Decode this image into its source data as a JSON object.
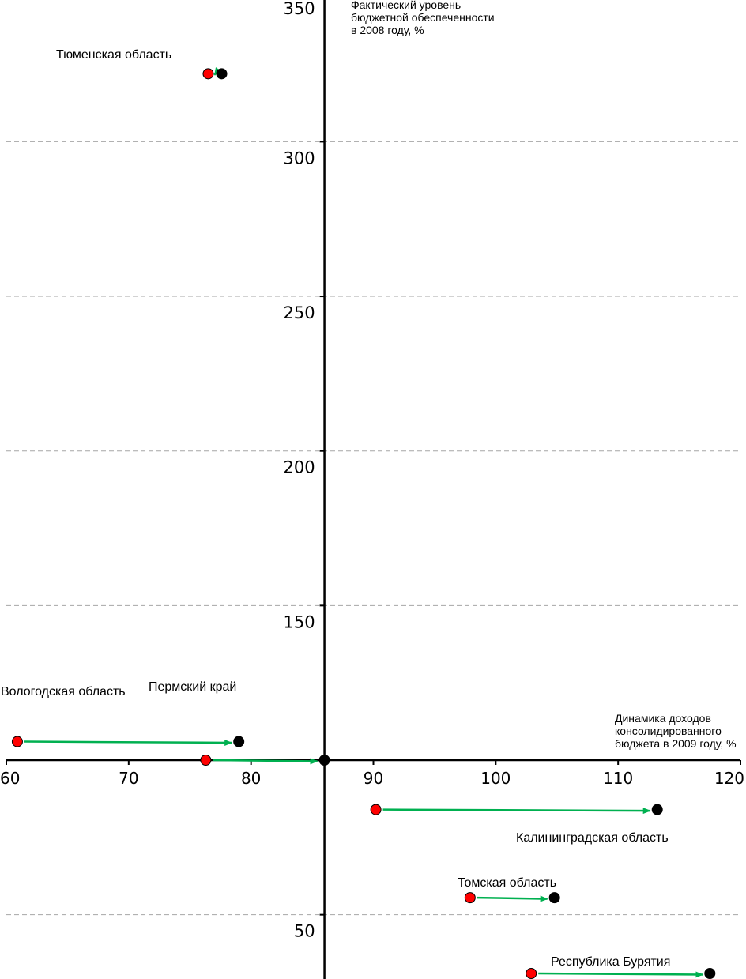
{
  "chart_data": {
    "type": "scatter",
    "title": "",
    "xlabel": "Динамика доходов\nконсолидированного\nбюджета в 2009 году, %",
    "ylabel": "Фактический уровень\nбюджетной обеспеченности\nв 2008 году, %",
    "xlim": [
      60,
      120
    ],
    "ylim": [
      30,
      355
    ],
    "x_axis_crosses_y_at": 100,
    "y_axis_crosses_x_at": 86,
    "x_ticks": [
      60,
      70,
      80,
      90,
      100,
      110,
      120
    ],
    "y_ticks": [
      50,
      150,
      200,
      250,
      300,
      350
    ],
    "gridlines_y": [
      50,
      150,
      200,
      250,
      300
    ],
    "grid": "horizontal dashed",
    "legend": "none",
    "colors": {
      "start_point": "#ff0000",
      "end_point": "#000000",
      "arrow": "#00b050",
      "grid": "#a6a6a6",
      "axis": "#000000"
    },
    "series": [
      {
        "region": "Тюменская область",
        "y": 322,
        "x_from": 76.5,
        "x_to": 77.6
      },
      {
        "region": "Вологодская область",
        "y": 106,
        "x_from": 60.9,
        "x_to": 79.0
      },
      {
        "region": "Пермский край",
        "y": 100,
        "x_from": 76.3,
        "x_to": 86.0
      },
      {
        "region": "Калининградская область",
        "y": 84,
        "x_from": 90.2,
        "x_to": 113.2
      },
      {
        "region": "Томская область",
        "y": 55.5,
        "x_from": 97.9,
        "x_to": 104.8
      },
      {
        "region": "Республика Бурятия",
        "y": 31,
        "x_from": 102.9,
        "x_to": 117.5
      }
    ]
  }
}
